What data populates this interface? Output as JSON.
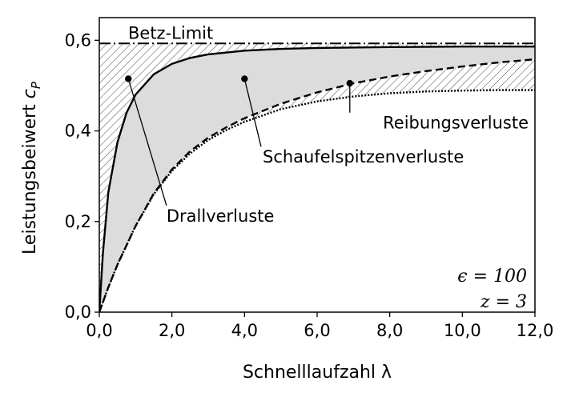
{
  "chart_data": {
    "type": "area",
    "xlabel": "Schnelllaufzahl λ",
    "ylabel": "Leistungsbeiwert c_P",
    "xlim": [
      0,
      12
    ],
    "ylim": [
      0,
      0.65
    ],
    "x_ticks": [
      0,
      2,
      4,
      6,
      8,
      10,
      12
    ],
    "x_tick_labels": [
      "0,0",
      "2,0",
      "4,0",
      "6,0",
      "8,0",
      "10,0",
      "12,0"
    ],
    "y_ticks": [
      0,
      0.2,
      0.4,
      0.6
    ],
    "y_tick_labels": [
      "0,0",
      "0,2",
      "0,4",
      "0,6"
    ],
    "grid": false,
    "betz_limit": {
      "label": "Betz-Limit",
      "value": 0.593
    },
    "series": [
      {
        "key": "drall",
        "style": "solid",
        "x": [
          0,
          0.1,
          0.25,
          0.5,
          0.75,
          1.0,
          1.5,
          2.0,
          2.5,
          3.0,
          4.0,
          5.0,
          6.0,
          8.0,
          10.0,
          12.0
        ],
        "y": [
          0,
          0.13,
          0.265,
          0.375,
          0.44,
          0.48,
          0.525,
          0.548,
          0.561,
          0.569,
          0.577,
          0.581,
          0.583,
          0.585,
          0.586,
          0.586
        ]
      },
      {
        "key": "schaufelspitzen",
        "style": "dashed",
        "x": [
          0,
          0.25,
          0.5,
          1.0,
          1.5,
          2.0,
          2.5,
          3.0,
          3.5,
          4.0,
          5.0,
          6.0,
          7.0,
          8.0,
          9.0,
          10.0,
          11.0,
          12.0
        ],
        "y": [
          0,
          0.055,
          0.105,
          0.19,
          0.262,
          0.315,
          0.355,
          0.385,
          0.408,
          0.428,
          0.46,
          0.485,
          0.505,
          0.52,
          0.532,
          0.542,
          0.551,
          0.558
        ]
      },
      {
        "key": "reibung",
        "style": "dotted",
        "x": [
          0,
          0.25,
          0.5,
          1.0,
          1.5,
          2.0,
          2.5,
          3.0,
          3.5,
          4.0,
          5.0,
          6.0,
          7.0,
          8.0,
          9.0,
          10.0,
          11.0,
          12.0
        ],
        "y": [
          0,
          0.055,
          0.105,
          0.19,
          0.26,
          0.312,
          0.35,
          0.38,
          0.402,
          0.42,
          0.448,
          0.465,
          0.476,
          0.483,
          0.487,
          0.489,
          0.49,
          0.49
        ]
      }
    ],
    "annotations": [
      {
        "text": "Drallverluste",
        "point": [
          0.8,
          0.515
        ],
        "label_at": [
          1.85,
          0.2
        ]
      },
      {
        "text": "Schaufelspitzenverluste",
        "point": [
          4.0,
          0.515
        ],
        "label_at": [
          4.5,
          0.33
        ]
      },
      {
        "text": "Reibungsverluste",
        "point": [
          6.9,
          0.505
        ],
        "label_at": [
          7.0,
          0.405
        ]
      }
    ],
    "parameters": [
      "ϵ = 100",
      "z = 3"
    ]
  }
}
